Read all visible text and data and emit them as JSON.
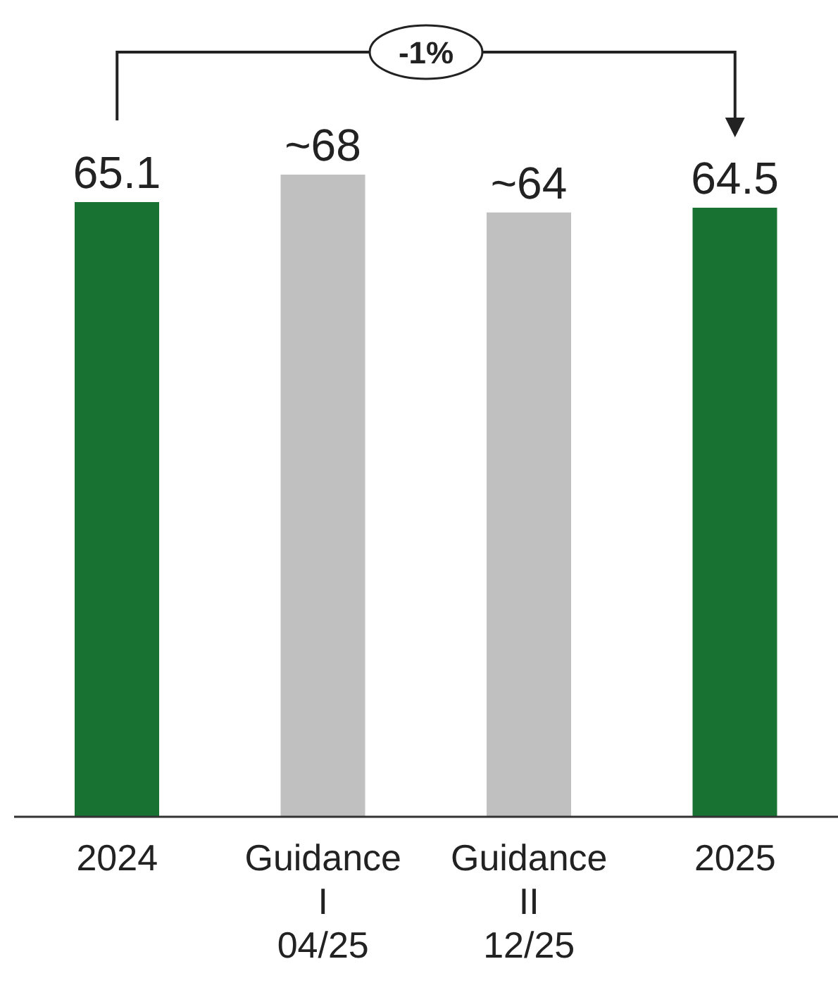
{
  "chart_data": {
    "type": "bar",
    "categories": [
      "2024",
      "Guidance I 04/25",
      "Guidance II 12/25",
      "2025"
    ],
    "values": [
      65.1,
      68,
      64,
      64.5
    ],
    "colors": [
      "#187232",
      "#c0c0c0",
      "#c0c0c0",
      "#187232"
    ],
    "value_labels": [
      "65.1",
      "~68",
      "~64",
      "64.5"
    ],
    "annotations": [
      "-1%"
    ]
  }
}
